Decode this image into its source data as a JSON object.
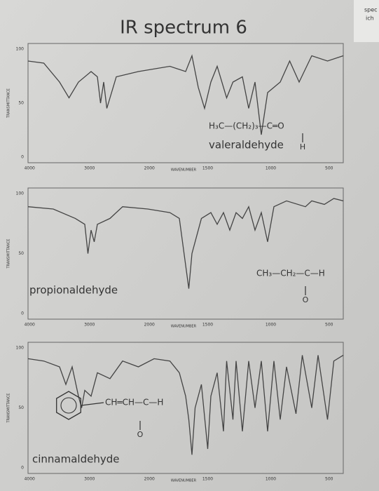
{
  "title": "IR spectrum 6",
  "margin_text": [
    "spec",
    "ich"
  ],
  "panels": [
    {
      "compound": "valeraldehyde",
      "formula": "H₃C—(CH₂)₃—C═O",
      "formula_sub": "H",
      "x_ticks": [
        "4000",
        "3000",
        "2000",
        "1500",
        "1000",
        "500"
      ],
      "x_label": "WAVENUMBER",
      "y_label": "TRANSMITTANCE",
      "y_ticks": [
        "100",
        "50",
        "0"
      ]
    },
    {
      "compound": "propionaldehyde",
      "formula": "CH₃—CH₂—C—H",
      "formula_sub": "O",
      "x_ticks": [
        "4000",
        "3000",
        "2000",
        "1500",
        "1000",
        "500"
      ],
      "x_label": "WAVENUMBER",
      "y_label": "TRANSMITTANCE",
      "y_ticks": [
        "100",
        "50",
        "0"
      ]
    },
    {
      "compound": "cinnamaldehyde",
      "formula": "CH═CH—C—H",
      "formula_sub": "O",
      "x_ticks": [
        "4000",
        "3000",
        "2000",
        "1500",
        "1000",
        "500"
      ],
      "x_label": "WAVENUMBER",
      "y_label": "TRANSMITTANCE",
      "y_ticks": [
        "100",
        "50",
        "0"
      ]
    }
  ]
}
